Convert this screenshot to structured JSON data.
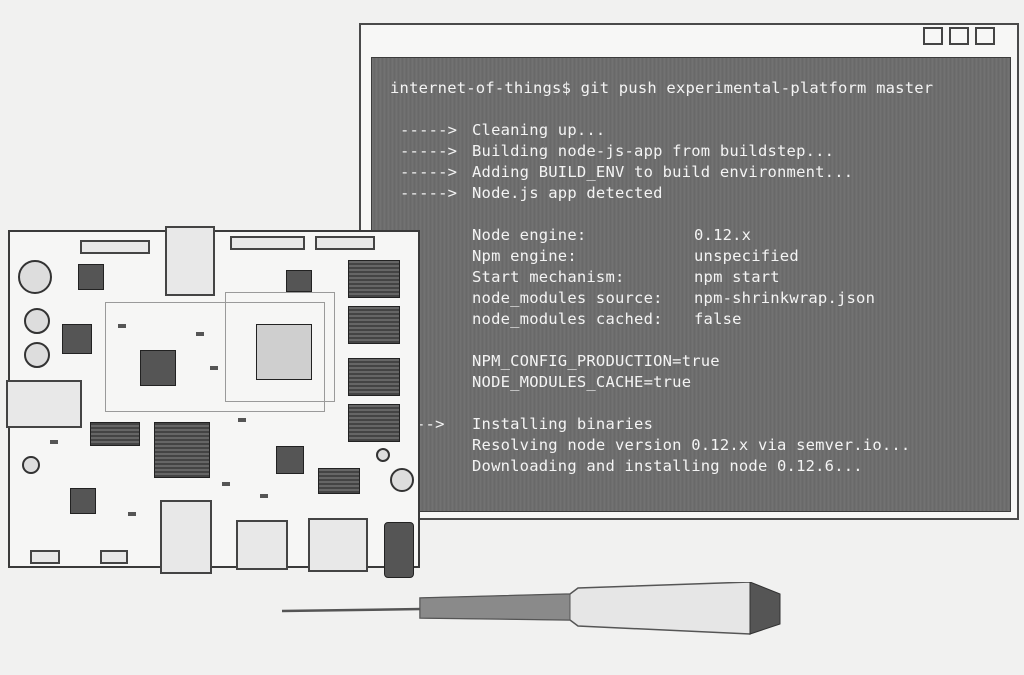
{
  "window": {
    "controls": [
      "minimize-icon",
      "maximize-icon",
      "close-icon"
    ]
  },
  "terminal": {
    "command": "internet-of-things$ git push experimental-platform master",
    "steps": [
      {
        "arrow": "----->",
        "text": "Cleaning up..."
      },
      {
        "arrow": "----->",
        "text": "Building node-js-app from buildstep..."
      },
      {
        "arrow": "----->",
        "text": "Adding BUILD_ENV to build environment..."
      },
      {
        "arrow": "----->",
        "text": "Node.js app detected"
      }
    ],
    "info": [
      {
        "key": "Node engine:",
        "value": "0.12.x"
      },
      {
        "key": "Npm engine:",
        "value": "unspecified"
      },
      {
        "key": "Start mechanism:",
        "value": "npm start"
      },
      {
        "key": "node_modules source:",
        "value": "npm-shrinkwrap.json"
      },
      {
        "key": "node_modules cached:",
        "value": "false"
      }
    ],
    "env": [
      "NPM_CONFIG_PRODUCTION=true",
      "NODE_MODULES_CACHE=true"
    ],
    "install": {
      "arrow": "-->",
      "lines": [
        "Installing binaries",
        "Resolving node version 0.12.x via semver.io...",
        "Downloading and installing node 0.12.6..."
      ]
    }
  },
  "illustration": {
    "board": "circuit-board-icon",
    "tool": "screwdriver-icon"
  }
}
